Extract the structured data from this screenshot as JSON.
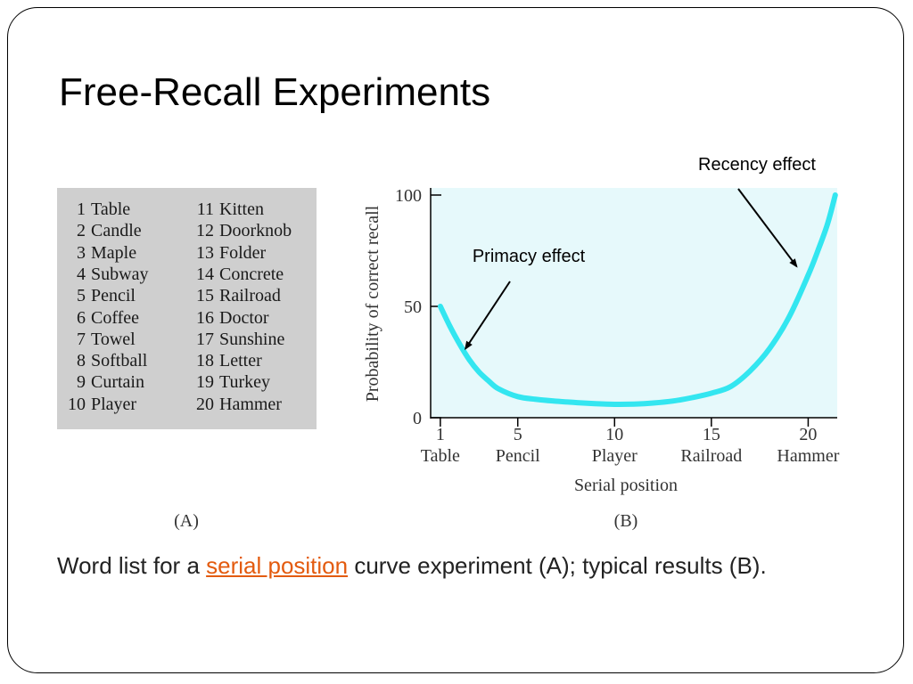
{
  "slide": {
    "title": "Free-Recall Experiments",
    "caption": {
      "before": "Word list for a ",
      "link": "serial position",
      "after": " curve experiment (A); typical results (B).",
      "link_color": "#e35b0f"
    },
    "panel_labels": {
      "a": "(A)",
      "b": "(B)"
    }
  },
  "word_list": {
    "background": "#cfcfcf",
    "items": [
      {
        "num": "1",
        "word": "Table"
      },
      {
        "num": "2",
        "word": "Candle"
      },
      {
        "num": "3",
        "word": "Maple"
      },
      {
        "num": "4",
        "word": "Subway"
      },
      {
        "num": "5",
        "word": "Pencil"
      },
      {
        "num": "6",
        "word": "Coffee"
      },
      {
        "num": "7",
        "word": "Towel"
      },
      {
        "num": "8",
        "word": "Softball"
      },
      {
        "num": "9",
        "word": "Curtain"
      },
      {
        "num": "10",
        "word": "Player"
      },
      {
        "num": "11",
        "word": "Kitten"
      },
      {
        "num": "12",
        "word": "Doorknob"
      },
      {
        "num": "13",
        "word": "Folder"
      },
      {
        "num": "14",
        "word": "Concrete"
      },
      {
        "num": "15",
        "word": "Railroad"
      },
      {
        "num": "16",
        "word": "Doctor"
      },
      {
        "num": "17",
        "word": "Sunshine"
      },
      {
        "num": "18",
        "word": "Letter"
      },
      {
        "num": "19",
        "word": "Turkey"
      },
      {
        "num": "20",
        "word": "Hammer"
      }
    ]
  },
  "chart_data": {
    "type": "line",
    "xlabel": "Serial position",
    "ylabel": "Probability of correct recall",
    "xlim": [
      0.5,
      21.5
    ],
    "ylim": [
      0,
      100
    ],
    "x_ticks": [
      {
        "value": 1,
        "label": "1",
        "sublabel": "Table"
      },
      {
        "value": 5,
        "label": "5",
        "sublabel": "Pencil"
      },
      {
        "value": 10,
        "label": "10",
        "sublabel": "Player"
      },
      {
        "value": 15,
        "label": "15",
        "sublabel": "Railroad"
      },
      {
        "value": 20,
        "label": "20",
        "sublabel": "Hammer"
      }
    ],
    "y_ticks": [
      {
        "value": 0,
        "label": "0"
      },
      {
        "value": 50,
        "label": "50"
      },
      {
        "value": 100,
        "label": "100"
      }
    ],
    "series": [
      {
        "color": "#33e6f0",
        "x": [
          1,
          1.5,
          2,
          2.5,
          3,
          3.5,
          4,
          5,
          6,
          7,
          8,
          9,
          10,
          11,
          12,
          13,
          14,
          15,
          16,
          17,
          18,
          19,
          20,
          20.5,
          21,
          21.4
        ],
        "y": [
          50,
          41,
          33,
          26,
          20.5,
          16.5,
          13,
          9.5,
          8.2,
          7.4,
          6.8,
          6.3,
          6.0,
          6.1,
          6.6,
          7.5,
          9,
          11,
          14,
          21,
          31,
          45,
          64,
          75,
          87,
          100
        ]
      }
    ],
    "annotations": [
      {
        "text": "Primacy effect",
        "target_x": 2.3,
        "target_y": 31
      },
      {
        "text": "Recency effect",
        "target_x": 19.4,
        "target_y": 68
      }
    ],
    "plot_background": "#e6f9fb",
    "grid": false
  }
}
